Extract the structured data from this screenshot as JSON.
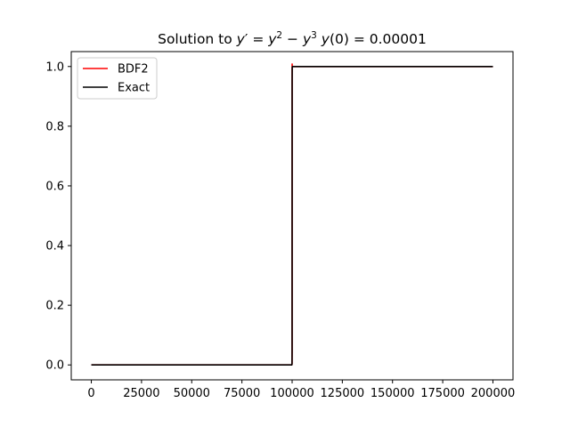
{
  "chart_data": {
    "type": "line",
    "title": "Solution to y′ = y² − y³ y(0) = 0.00001",
    "title_parts": {
      "prefix": "Solution to ",
      "expr_a": "y",
      "prime": "′",
      "eq1": " = ",
      "expr_b": "y",
      "sup_b": "2",
      "minus": " − ",
      "expr_c": "y",
      "sup_c": "3",
      "space": " ",
      "expr_d": "y",
      "paren": "(0)",
      "eq2": " = ",
      "value": "0.00001"
    },
    "xlabel": "",
    "ylabel": "",
    "xlim": [
      -10000,
      210000
    ],
    "ylim": [
      -0.05,
      1.05
    ],
    "xticks": [
      0,
      25000,
      50000,
      75000,
      100000,
      125000,
      150000,
      175000,
      200000
    ],
    "yticks": [
      0.0,
      0.2,
      0.4,
      0.6,
      0.8,
      1.0
    ],
    "xtick_labels": [
      "0",
      "25000",
      "50000",
      "75000",
      "100000",
      "125000",
      "150000",
      "175000",
      "200000"
    ],
    "ytick_labels": [
      "0.0",
      "0.2",
      "0.4",
      "0.6",
      "0.8",
      "1.0"
    ],
    "grid": false,
    "legend_position": "top-left",
    "series": [
      {
        "name": "BDF2",
        "color": "#ff0000",
        "x": [
          0,
          99800,
          99950,
          99990,
          100000,
          100010,
          100050,
          100200,
          200000
        ],
        "y": [
          0.0,
          0.0,
          0.003,
          0.05,
          0.5,
          1.01,
          1.0,
          1.0,
          1.0
        ]
      },
      {
        "name": "Exact",
        "color": "#000000",
        "x": [
          0,
          99800,
          99950,
          99990,
          100000,
          100010,
          100050,
          100200,
          200000
        ],
        "y": [
          0.0,
          0.0,
          0.003,
          0.05,
          0.5,
          0.95,
          0.997,
          1.0,
          1.0
        ]
      }
    ]
  }
}
